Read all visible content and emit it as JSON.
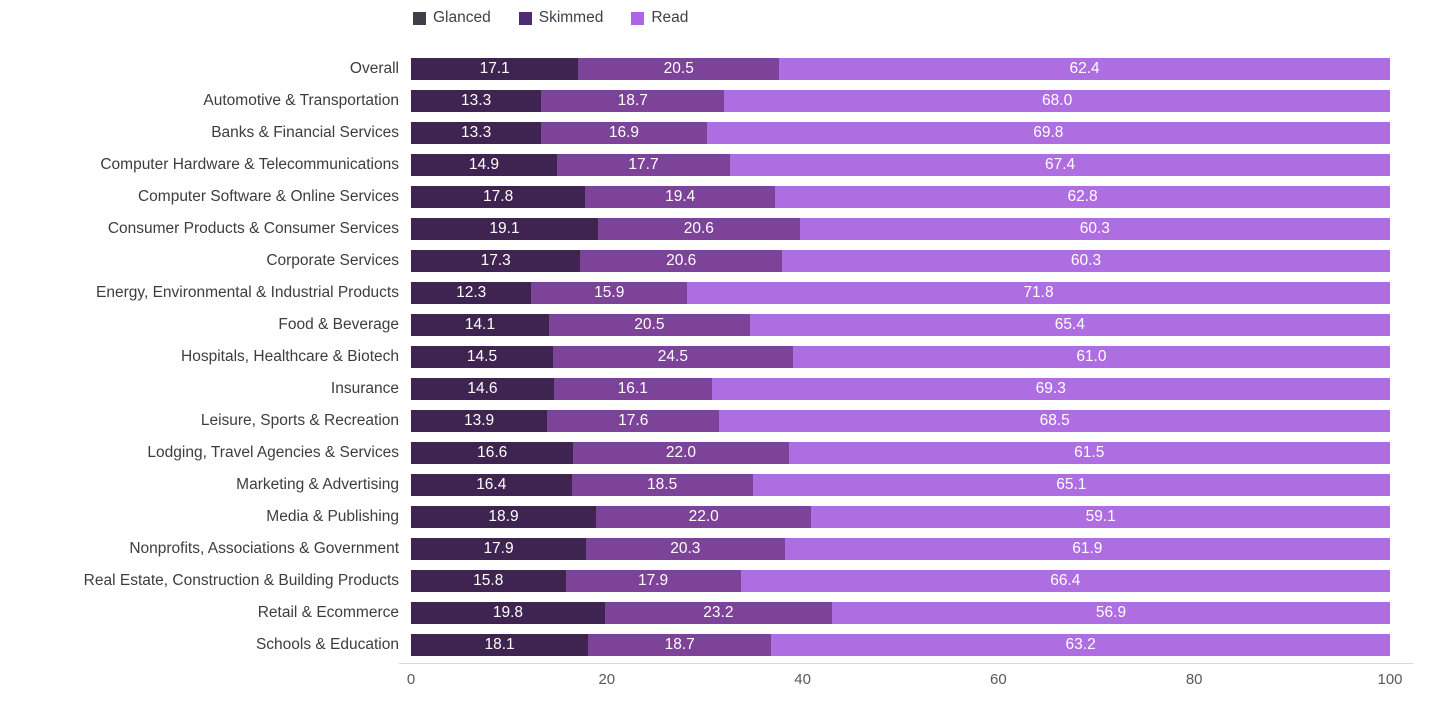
{
  "legend": {
    "items": [
      {
        "label": "Glanced",
        "swatch_color": "#3e3f49"
      },
      {
        "label": "Skimmed",
        "swatch_color": "#4f2b74"
      },
      {
        "label": "Read",
        "swatch_color": "#ad64e6"
      }
    ]
  },
  "colors": {
    "glanced_bar": "#3f2451",
    "skimmed_bar": "#7d4398",
    "read_bar": "#af6de2",
    "axis_line": "#dadada",
    "category_text": "#3d3d3d",
    "value_text": "#ffffff",
    "tick_text": "#595959"
  },
  "chart_data": {
    "type": "bar",
    "orientation": "horizontal",
    "stacked": true,
    "title": "",
    "xlabel": "",
    "ylabel": "",
    "xlim": [
      0,
      100
    ],
    "x_ticks": [
      "0",
      "20",
      "40",
      "60",
      "80",
      "100"
    ],
    "grid": false,
    "legend_position": "top",
    "value_labels": "inside-center, one decimal",
    "categories": [
      "Overall",
      "Automotive & Transportation",
      "Banks & Financial Services",
      "Computer Hardware & Telecommunications",
      "Computer Software & Online Services",
      "Consumer Products & Consumer Services",
      "Corporate Services",
      "Energy, Environmental & Industrial Products",
      "Food & Beverage",
      "Hospitals, Healthcare & Biotech",
      "Insurance",
      "Leisure, Sports & Recreation",
      "Lodging, Travel Agencies & Services",
      "Marketing & Advertising",
      "Media & Publishing",
      "Nonprofits, Associations & Government",
      "Real Estate, Construction & Building Products",
      "Retail & Ecommerce",
      "Schools & Education"
    ],
    "series": [
      {
        "name": "Glanced",
        "color": "#3f2451",
        "values": [
          17.1,
          13.3,
          13.3,
          14.9,
          17.8,
          19.1,
          17.3,
          12.3,
          14.1,
          14.5,
          14.6,
          13.9,
          16.6,
          16.4,
          18.9,
          17.9,
          15.8,
          19.8,
          18.1
        ]
      },
      {
        "name": "Skimmed",
        "color": "#7d4398",
        "values": [
          20.5,
          18.7,
          16.9,
          17.7,
          19.4,
          20.6,
          20.6,
          15.9,
          20.5,
          24.5,
          16.1,
          17.6,
          22.0,
          18.5,
          22.0,
          20.3,
          17.9,
          23.2,
          18.7
        ]
      },
      {
        "name": "Read",
        "color": "#af6de2",
        "values": [
          62.4,
          68.0,
          69.8,
          67.4,
          62.8,
          60.3,
          60.3,
          71.8,
          65.4,
          61.0,
          69.3,
          68.5,
          61.5,
          65.1,
          59.1,
          61.9,
          66.4,
          56.9,
          63.2
        ]
      }
    ]
  }
}
